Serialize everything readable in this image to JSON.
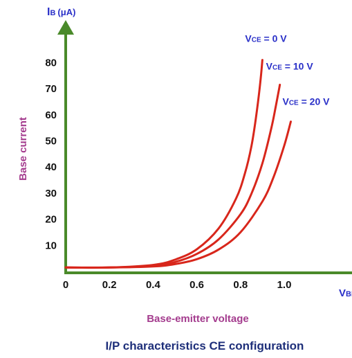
{
  "colors": {
    "axis": "#4a8a2a",
    "curve": "#d8261b",
    "label_blue": "#2a30c8",
    "label_purple": "#a43c8e",
    "caption": "#1e2f7a",
    "tick": "#111111"
  },
  "chart_data": {
    "type": "line",
    "title": "I/P characteristics CE configuration",
    "xlabel": "Base-emitter voltage",
    "xaxis_symbol": {
      "main": "V",
      "sub": "BE"
    },
    "ylabel": "Base current",
    "yaxis_symbol": {
      "main": "I",
      "sub": "B",
      "unit": "(μA)"
    },
    "xlim": [
      0,
      1.15
    ],
    "ylim": [
      0,
      85
    ],
    "x_ticks": [
      "0",
      "0.2",
      "0.4",
      "0.6",
      "0.8",
      "1.0"
    ],
    "y_ticks": [
      "10",
      "20",
      "30",
      "40",
      "50",
      "60",
      "70",
      "80"
    ],
    "grid": false,
    "legend": "none",
    "series": [
      {
        "name": "VCE = 0 V",
        "label": {
          "main": "V",
          "sub": "CE",
          "rest": " = 0 V"
        },
        "x": [
          0,
          0.2,
          0.4,
          0.5,
          0.6,
          0.7,
          0.78,
          0.82,
          0.85,
          0.87,
          0.89,
          0.9
        ],
        "y": [
          1.5,
          1.5,
          2.5,
          4.5,
          8.5,
          16.5,
          28,
          37.5,
          48,
          58.5,
          72,
          81
        ]
      },
      {
        "name": "VCE = 10 V",
        "label": {
          "main": "V",
          "sub": "CE",
          "rest": " = 10 V"
        },
        "x": [
          0,
          0.2,
          0.4,
          0.5,
          0.6,
          0.7,
          0.8,
          0.85,
          0.9,
          0.94,
          0.96,
          0.98
        ],
        "y": [
          1.5,
          1.5,
          2.2,
          3.6,
          6.7,
          12.3,
          21.9,
          29.8,
          41.4,
          54.5,
          62.7,
          71.5
        ]
      },
      {
        "name": "VCE = 20 V",
        "label": {
          "main": "V",
          "sub": "CE",
          "rest": " = 20 V"
        },
        "x": [
          0,
          0.2,
          0.4,
          0.5,
          0.6,
          0.7,
          0.8,
          0.9,
          0.95,
          1.0,
          1.03
        ],
        "y": [
          1.5,
          1.5,
          1.9,
          2.8,
          4.7,
          8.4,
          15,
          26.8,
          35.9,
          48.2,
          57.4
        ]
      }
    ]
  }
}
